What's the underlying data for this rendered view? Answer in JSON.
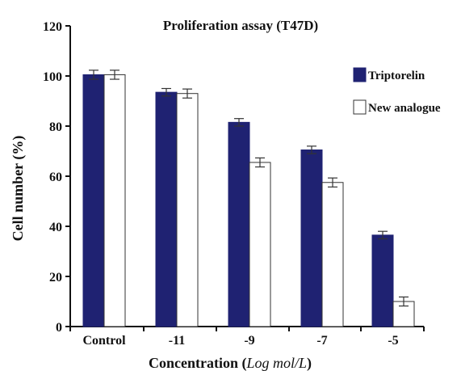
{
  "chart_data": {
    "type": "bar",
    "title": "Proliferation assay (T47D)",
    "ylabel": "Cell number (%)",
    "xlabel_prefix": "Concentration (",
    "xlabel_italic": "Log mol/L",
    "xlabel_suffix": ")",
    "categories": [
      "Control",
      "-11",
      "-9",
      "-7",
      "-5"
    ],
    "ylim": [
      0,
      120
    ],
    "yticks": [
      0,
      20,
      40,
      60,
      80,
      100,
      120
    ],
    "legend_position": "right",
    "series": [
      {
        "name": "Triptorelin",
        "color": "#1f2272",
        "values": [
          100.5,
          93.5,
          81.5,
          70.5,
          36.5
        ],
        "errors": [
          1.8,
          1.5,
          1.5,
          1.5,
          1.5
        ]
      },
      {
        "name": "New analogue",
        "color": "#ffffff",
        "values": [
          100.5,
          93.0,
          65.5,
          57.5,
          10.0
        ],
        "errors": [
          1.8,
          1.8,
          1.8,
          1.8,
          1.8
        ]
      }
    ]
  }
}
